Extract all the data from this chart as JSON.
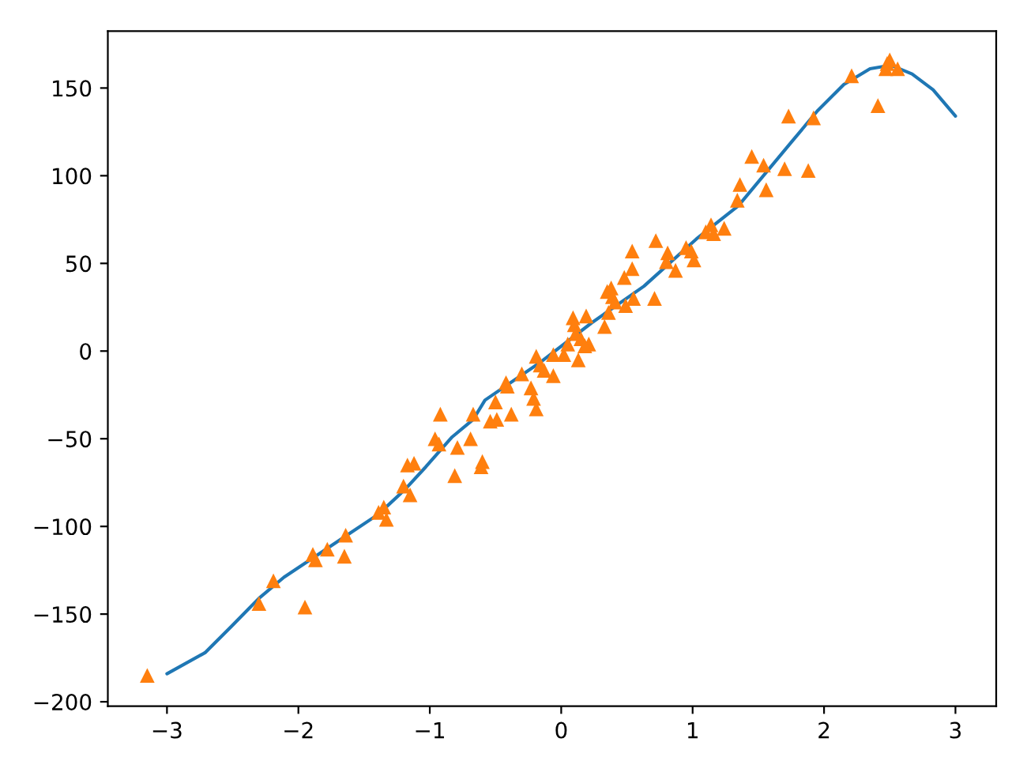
{
  "chart_data": {
    "type": "scatter",
    "xlim": [
      -3.45,
      3.31
    ],
    "ylim": [
      -202.5,
      182.5
    ],
    "xticks": [
      {
        "value": -3,
        "label": "−3"
      },
      {
        "value": -2,
        "label": "−2"
      },
      {
        "value": -1,
        "label": "−1"
      },
      0,
      1,
      2,
      3
    ],
    "yticks": [
      {
        "value": -200,
        "label": "−200"
      },
      {
        "value": -150,
        "label": "−150"
      },
      {
        "value": -100,
        "label": "−100"
      },
      {
        "value": -50,
        "label": "−50"
      },
      0,
      50,
      100,
      150
    ],
    "grid": false,
    "series": [
      {
        "type": "line",
        "color": "#1f77b4",
        "marker": "none",
        "line_style": "solid",
        "x": [
          -3.0,
          -2.71,
          -2.51,
          -2.3,
          -2.11,
          -1.83,
          -1.63,
          -1.39,
          -1.19,
          -1.03,
          -0.83,
          -0.67,
          -0.58,
          -0.17,
          0.23,
          0.63,
          1.03,
          1.35,
          1.75,
          1.95,
          2.15,
          2.35,
          2.51,
          2.67,
          2.83,
          3.0
        ],
        "values": [
          -184,
          -172,
          -157,
          -141,
          -129,
          -115,
          -105,
          -93,
          -79,
          -66,
          -49,
          -39,
          -28,
          -7,
          16,
          37,
          64,
          83,
          119,
          137,
          152,
          161,
          163,
          158,
          149,
          134
        ]
      },
      {
        "color": "#ff7f0e",
        "marker": "triangle",
        "x": [
          -3.15,
          -2.3,
          -2.19,
          -1.95,
          -1.89,
          -1.87,
          -1.78,
          -1.65,
          -1.64,
          -1.39,
          -1.35,
          -1.33,
          -1.2,
          -1.15,
          -1.17,
          -1.12,
          -0.96,
          -0.93,
          -0.92,
          -0.81,
          -0.79,
          -0.69,
          -0.67,
          -0.6,
          -0.61,
          -0.54,
          -0.49,
          -0.5,
          -0.42,
          -0.41,
          -0.38,
          -0.3,
          -0.23,
          -0.21,
          -0.19,
          -0.19,
          -0.16,
          -0.13,
          -0.06,
          -0.06,
          0.02,
          0.05,
          0.09,
          0.1,
          0.11,
          0.13,
          0.15,
          0.19,
          0.21,
          0.18,
          0.33,
          0.35,
          0.38,
          0.39,
          0.41,
          0.36,
          0.49,
          0.55,
          0.54,
          0.48,
          0.54,
          0.71,
          0.72,
          0.81,
          0.8,
          0.87,
          0.95,
          1.01,
          0.99,
          1.1,
          1.14,
          1.16,
          1.24,
          1.34,
          1.36,
          1.45,
          1.54,
          1.56,
          1.7,
          1.73,
          1.88,
          1.92,
          2.21,
          2.41,
          2.48,
          2.5,
          2.47,
          2.56
        ],
        "values": [
          -185,
          -144,
          -131,
          -146,
          -116,
          -119,
          -113,
          -117,
          -105,
          -92,
          -89,
          -96,
          -77,
          -82,
          -65,
          -64,
          -50,
          -53,
          -36,
          -71,
          -55,
          -50,
          -36,
          -63,
          -66,
          -40,
          -39,
          -29,
          -18,
          -20,
          -36,
          -13,
          -21,
          -27,
          -33,
          -3,
          -8,
          -11,
          -14,
          -2,
          -2,
          4,
          19,
          15,
          10,
          -5,
          7,
          20,
          4,
          3,
          14,
          34,
          36,
          31,
          28,
          22,
          26,
          30,
          47,
          42,
          57,
          30,
          63,
          56,
          51,
          46,
          59,
          52,
          57,
          68,
          72,
          67,
          70,
          86,
          95,
          111,
          106,
          92,
          104,
          134,
          103,
          133,
          157,
          140,
          164,
          166,
          161,
          161
        ]
      }
    ]
  }
}
